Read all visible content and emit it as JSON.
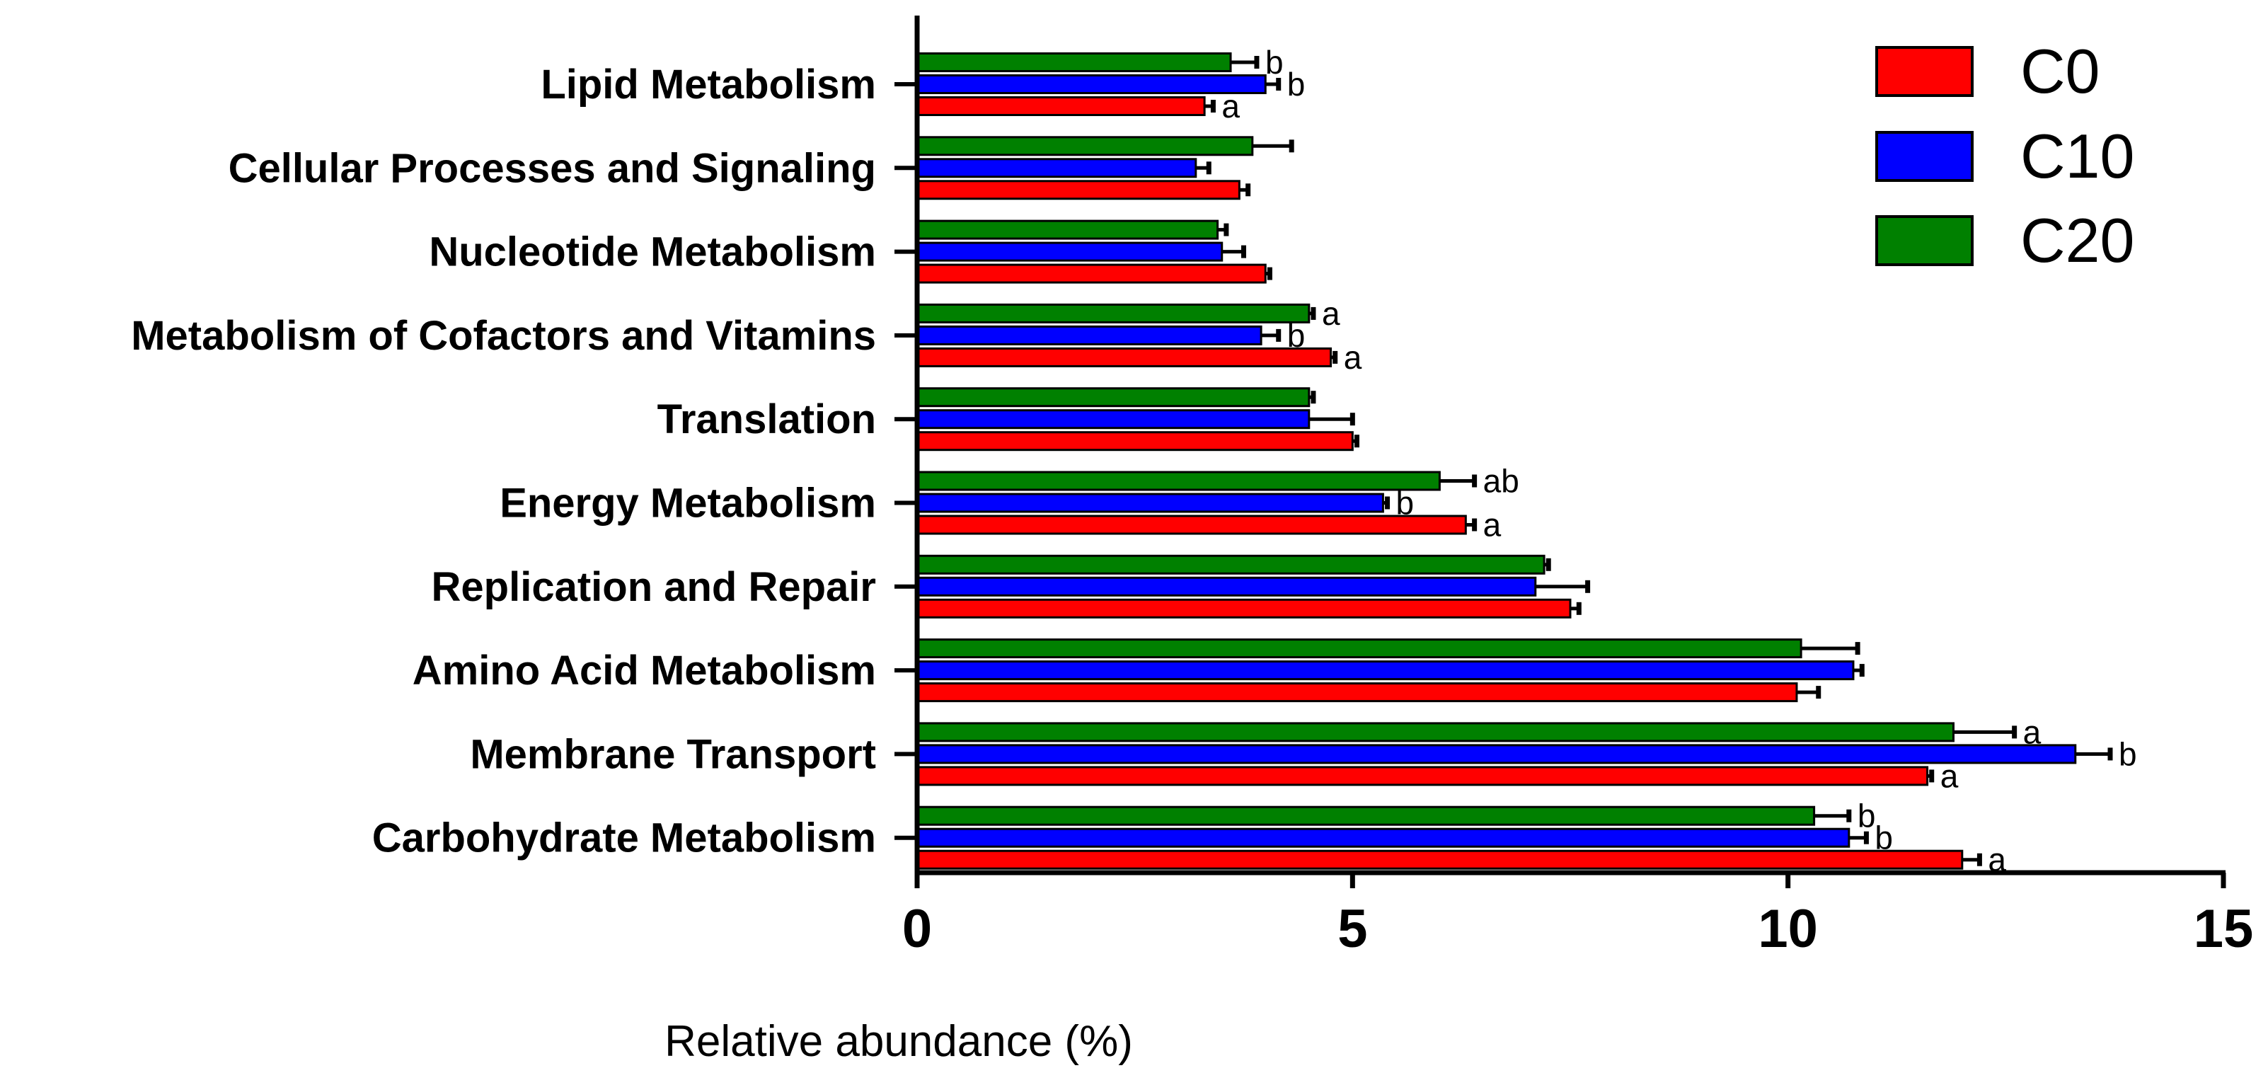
{
  "chart_data": {
    "type": "bar",
    "orientation": "horizontal",
    "xlabel": "Relative abundance (%)",
    "xlim": [
      0,
      15
    ],
    "xticks": [
      "0",
      "5",
      "10",
      "15"
    ],
    "categories": [
      "Lipid Metabolism",
      "Cellular Processes and Signaling",
      "Nucleotide Metabolism",
      "Metabolism of Cofactors and Vitamins",
      "Translation",
      "Energy Metabolism",
      "Replication and Repair",
      "Amino Acid Metabolism",
      "Membrane Transport",
      "Carbohydrate Metabolism"
    ],
    "series": [
      {
        "name": "C0",
        "color": "#ff0000",
        "values": [
          3.3,
          3.7,
          4.0,
          4.75,
          5.0,
          6.3,
          7.5,
          10.1,
          11.6,
          12.0
        ],
        "errors": [
          0.1,
          0.1,
          0.05,
          0.05,
          0.05,
          0.1,
          0.1,
          0.25,
          0.05,
          0.2
        ],
        "sig": [
          "a",
          "",
          "",
          "a",
          "",
          "a",
          "",
          "",
          "a",
          "a"
        ]
      },
      {
        "name": "C10",
        "color": "#0000ff",
        "values": [
          4.0,
          3.2,
          3.5,
          3.95,
          4.5,
          5.35,
          7.1,
          10.75,
          13.3,
          10.7
        ],
        "errors": [
          0.15,
          0.15,
          0.25,
          0.2,
          0.5,
          0.05,
          0.6,
          0.1,
          0.4,
          0.2
        ],
        "sig": [
          "b",
          "",
          "",
          "b",
          "",
          "b",
          "",
          "",
          "b",
          "b"
        ]
      },
      {
        "name": "C20",
        "color": "#008000",
        "values": [
          3.6,
          3.85,
          3.45,
          4.5,
          4.5,
          6.0,
          7.2,
          10.15,
          11.9,
          10.3
        ],
        "errors": [
          0.3,
          0.45,
          0.1,
          0.05,
          0.05,
          0.4,
          0.05,
          0.65,
          0.7,
          0.4
        ],
        "sig": [
          "b",
          "",
          "",
          "a",
          "",
          "ab",
          "",
          "",
          "a",
          "b"
        ]
      }
    ],
    "legend": {
      "position": "top-right",
      "entries": [
        "C0",
        "C10",
        "C20"
      ]
    }
  }
}
